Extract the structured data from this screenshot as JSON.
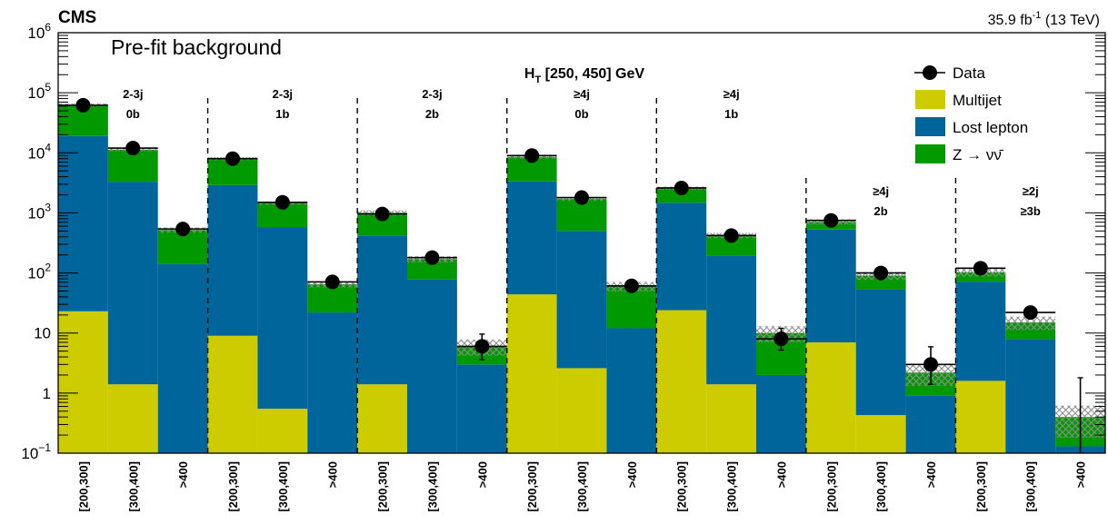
{
  "header": {
    "experiment": "CMS",
    "lumi_value": "35.9 fb",
    "lumi_exp": "-1",
    "lumi_energy": " (13 TeV)"
  },
  "plot_title": "Pre-fit background",
  "ht_label": {
    "prefix": "H",
    "sub": "T",
    "range": " [250, 450] GeV"
  },
  "colors": {
    "multijet": "#cccc00",
    "lost_lepton": "#00659b",
    "znunu": "#009900",
    "data": "#000000",
    "uncertainty": "#8c8c8c"
  },
  "legend": [
    {
      "key": "data",
      "label": "Data"
    },
    {
      "key": "multijet",
      "label": "Multijet"
    },
    {
      "key": "lost_lepton",
      "label": "Lost lepton"
    },
    {
      "key": "znunu",
      "label": "Z → νν̄"
    }
  ],
  "chart_data": {
    "type": "bar",
    "stacked": true,
    "yscale": "log",
    "ylim": [
      0.1,
      1000000
    ],
    "y_ticks": [
      {
        "value": 0.1,
        "base": "10",
        "exp": "−1"
      },
      {
        "value": 1,
        "base": "1",
        "exp": ""
      },
      {
        "value": 10,
        "base": "10",
        "exp": ""
      },
      {
        "value": 100,
        "base": "10",
        "exp": "2"
      },
      {
        "value": 1000,
        "base": "10",
        "exp": "3"
      },
      {
        "value": 10000,
        "base": "10",
        "exp": "4"
      },
      {
        "value": 100000,
        "base": "10",
        "exp": "5"
      },
      {
        "value": 1000000,
        "base": "10",
        "exp": "6"
      }
    ],
    "categories": [
      "[200,300]",
      "[300,400]",
      ">400",
      "[200,300]",
      "[300,400]",
      ">400",
      "[200,300]",
      "[300,400]",
      ">400",
      "[200,300]",
      "[300,400]",
      ">400",
      "[200,300]",
      "[300,400]",
      ">400",
      "[200,300]",
      "[300,400]",
      ">400",
      "[200,300]",
      "[300,400]",
      ">400"
    ],
    "regions": [
      {
        "line1": "2-3j",
        "line2": "0b"
      },
      {
        "line1": "2-3j",
        "line2": "1b"
      },
      {
        "line1": "2-3j",
        "line2": "2b"
      },
      {
        "line1": "≥4j",
        "line2": "0b"
      },
      {
        "line1": "≥4j",
        "line2": "1b"
      },
      {
        "line1": "≥4j",
        "line2": "2b"
      },
      {
        "line1": "≥2j",
        "line2": "≥3b"
      }
    ],
    "series": [
      {
        "name": "Multijet",
        "key": "multijet",
        "values": [
          23,
          1.4,
          0,
          9,
          0.55,
          0,
          1.4,
          0,
          0,
          44,
          2.6,
          0,
          24,
          1.4,
          0,
          7,
          0.43,
          0,
          1.6,
          0,
          0
        ]
      },
      {
        "name": "Lost lepton",
        "key": "lost_lepton",
        "values": [
          19000,
          3300,
          140,
          2900,
          580,
          22,
          420,
          78,
          3,
          3300,
          500,
          12,
          1450,
          190,
          2,
          520,
          53,
          0.9,
          70,
          8,
          0.13
        ]
      },
      {
        "name": "Z → νν̄",
        "key": "znunu",
        "values": [
          44000,
          8000,
          380,
          5100,
          870,
          43,
          580,
          92,
          3,
          5200,
          1200,
          48,
          1100,
          230,
          8,
          180,
          37,
          1.3,
          31,
          7,
          0.27
        ]
      }
    ],
    "uncertainty_frac": [
      0.06,
      0.06,
      0.1,
      0.06,
      0.06,
      0.12,
      0.1,
      0.12,
      0.3,
      0.06,
      0.07,
      0.18,
      0.06,
      0.1,
      0.3,
      0.1,
      0.15,
      0.4,
      0.15,
      0.25,
      0.55
    ],
    "data": {
      "name": "Data",
      "values": [
        62000,
        12000,
        540,
        8000,
        1500,
        71,
        960,
        180,
        6,
        9000,
        1800,
        61,
        2600,
        420,
        8,
        750,
        100,
        3,
        120,
        22,
        0
      ],
      "err_low": [
        0,
        0,
        0,
        0,
        0,
        0,
        0,
        0,
        2.4,
        0,
        0,
        0,
        0,
        0,
        2.8,
        0,
        0,
        1.6,
        0,
        0,
        0
      ],
      "err_high": [
        0,
        0,
        0,
        0,
        0,
        0,
        0,
        0,
        3.6,
        0,
        0,
        0,
        0,
        0,
        4.0,
        0,
        0,
        2.9,
        0,
        0,
        1.8
      ]
    }
  }
}
